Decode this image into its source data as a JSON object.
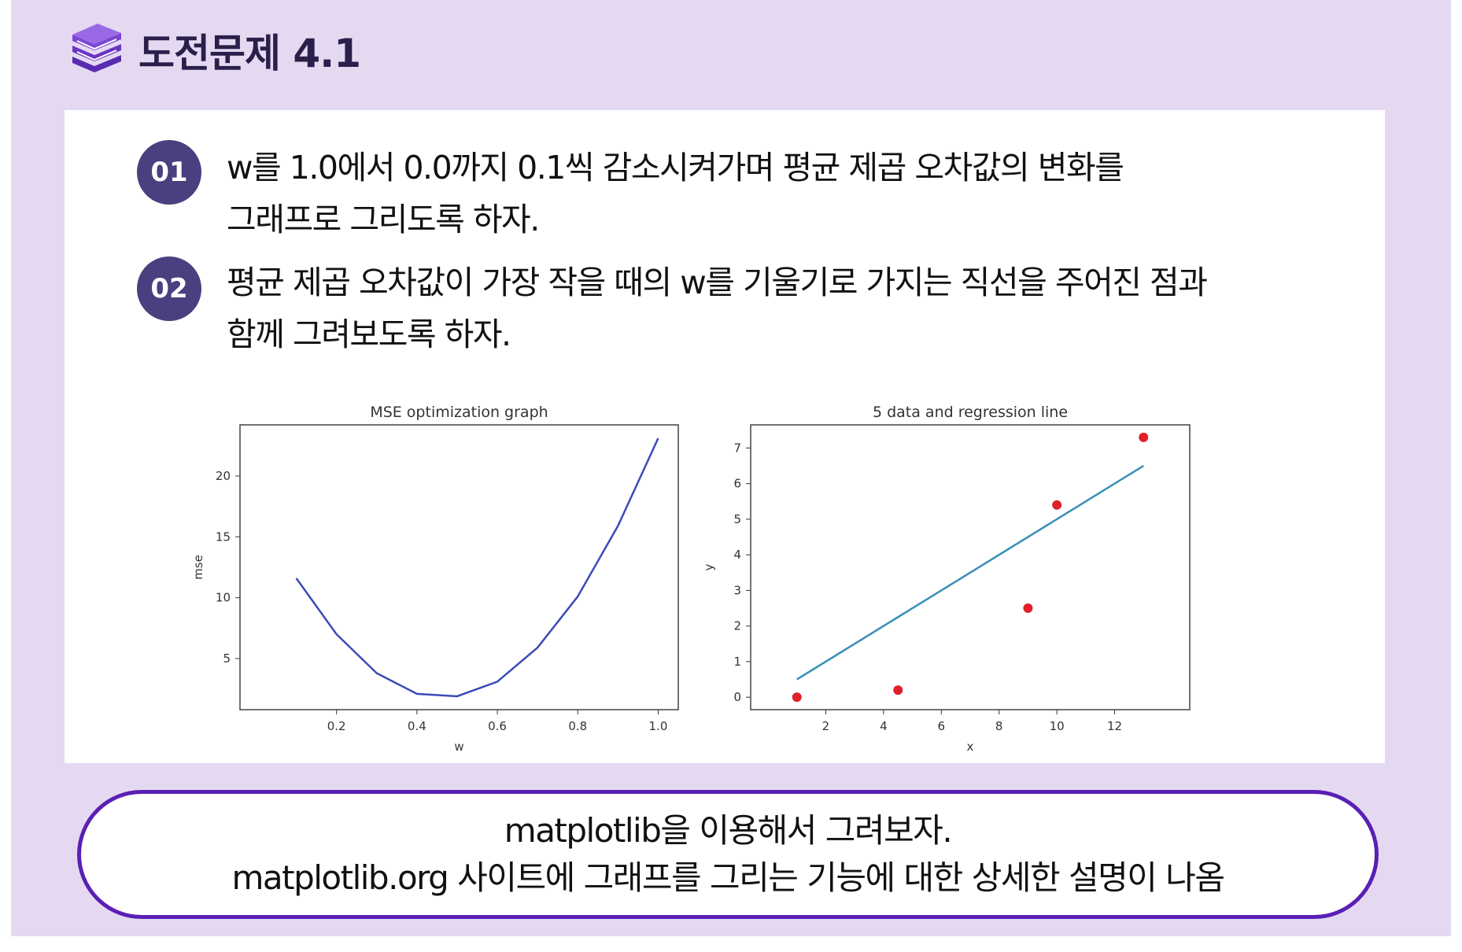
{
  "header": {
    "title": "도전문제 4.1",
    "icon": "book-stack-icon",
    "accent_color": "#5a2bb0"
  },
  "tasks": [
    {
      "number": "01",
      "lines": [
        "w를 1.0에서 0.0까지 0.1씩 감소시켜가며 평균 제곱 오차값의 변화를",
        "그래프로 그리도록 하자."
      ]
    },
    {
      "number": "02",
      "lines": [
        "평균 제곱 오차값이 가장 작을 때의 w를 기울기로 가지는 직선을 주어진 점과",
        "함께 그려보도록 하자."
      ]
    }
  ],
  "chart_data": [
    {
      "type": "line",
      "title": "MSE optimization graph",
      "xlabel": "w",
      "ylabel": "mse",
      "x": [
        0.1,
        0.2,
        0.3,
        0.4,
        0.5,
        0.6,
        0.7,
        0.8,
        0.9,
        1.0
      ],
      "series": [
        {
          "values": [
            11.6,
            7.0,
            3.8,
            2.1,
            1.9,
            3.1,
            5.9,
            10.1,
            15.9,
            23.1
          ],
          "color": "#3b4bb5"
        }
      ],
      "xlim": [
        -0.04,
        1.05
      ],
      "ylim": [
        0.8,
        24.2
      ],
      "xticks": [
        0.2,
        0.4,
        0.6,
        0.8,
        1.0
      ],
      "xtick_labels": [
        "0.2",
        "0.4",
        "0.6",
        "0.8",
        "1.0"
      ],
      "yticks": [
        5,
        10,
        15,
        20
      ],
      "ytick_labels": [
        "5",
        "10",
        "15",
        "20"
      ],
      "grid": false
    },
    {
      "type": "scatter",
      "title": "5 data and regression line",
      "xlabel": "x",
      "ylabel": "y",
      "points": {
        "x": [
          1,
          4.5,
          9,
          10,
          13
        ],
        "y": [
          0,
          0.2,
          2.5,
          5.4,
          7.3
        ],
        "color": "#e0202a"
      },
      "line": {
        "x": [
          1,
          13
        ],
        "y": [
          0.5,
          6.5
        ],
        "color": "#3a8fb7"
      },
      "xlim": [
        -0.6,
        14.6
      ],
      "ylim": [
        -0.35,
        7.65
      ],
      "xticks": [
        2,
        4,
        6,
        8,
        10,
        12
      ],
      "xtick_labels": [
        "2",
        "4",
        "6",
        "8",
        "10",
        "12"
      ],
      "yticks": [
        0,
        1,
        2,
        3,
        4,
        5,
        6,
        7
      ],
      "ytick_labels": [
        "0",
        "1",
        "2",
        "3",
        "4",
        "5",
        "6",
        "7"
      ],
      "grid": false
    }
  ],
  "note": {
    "line1": "matplotlib을 이용해서 그려보자.",
    "line2": "matplotlib.org 사이트에 그래프를 그리는 기능에 대한 상세한 설명이 나옴",
    "border_color": "#5a1fb4"
  }
}
